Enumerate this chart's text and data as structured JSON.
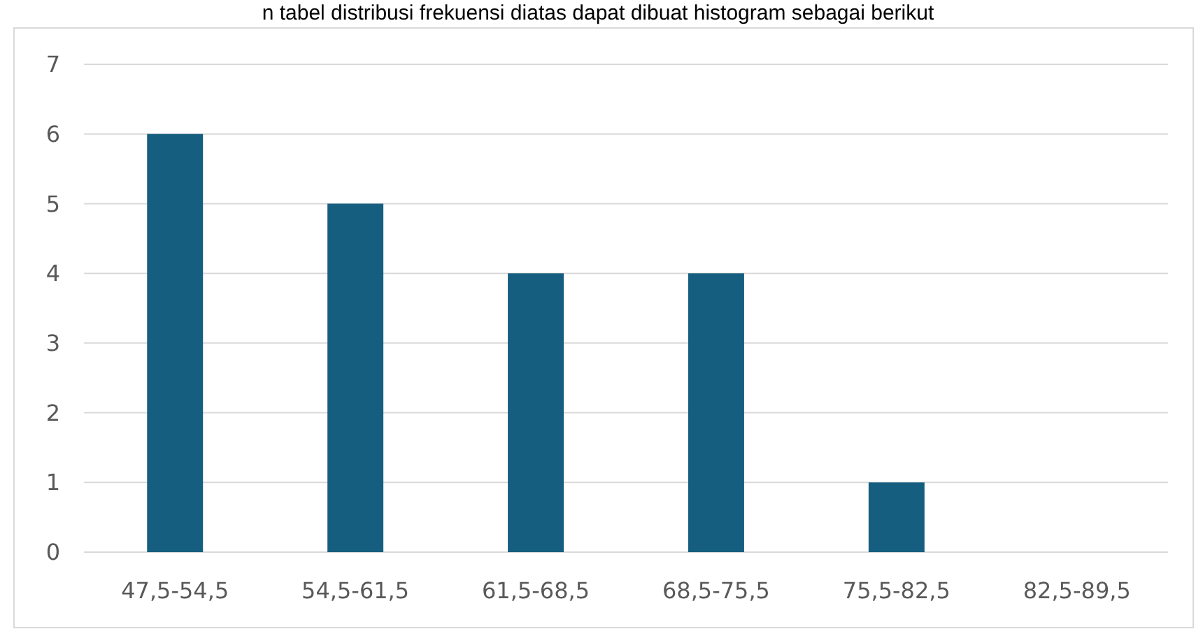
{
  "chart_data": {
    "type": "bar",
    "title": "n tabel distribusi frekuensi diatas dapat dibuat histogram sebagai berikut",
    "categories": [
      "47,5-54,5",
      "54,5-61,5",
      "61,5-68,5",
      "68,5-75,5",
      "75,5-82,5",
      "82,5-89,5"
    ],
    "values": [
      6,
      5,
      4,
      4,
      1,
      0
    ],
    "color": "#165e80",
    "ylim": [
      0,
      7
    ],
    "yticks": [
      0,
      1,
      2,
      3,
      4,
      5,
      6,
      7
    ],
    "grid": "y"
  }
}
